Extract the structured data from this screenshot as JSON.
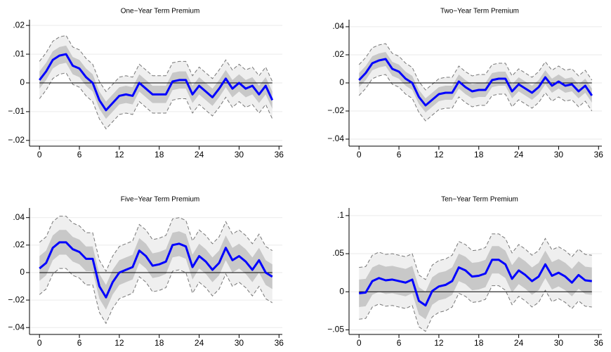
{
  "chart_data": [
    {
      "type": "line",
      "title": "One−Year Term Premium",
      "x": [
        0,
        1,
        2,
        3,
        4,
        5,
        6,
        7,
        8,
        9,
        10,
        11,
        12,
        13,
        14,
        15,
        16,
        17,
        18,
        19,
        20,
        21,
        22,
        23,
        24,
        25,
        26,
        27,
        28,
        29,
        30,
        31,
        32,
        33,
        34,
        35
      ],
      "values": [
        0.001,
        0.004,
        0.008,
        0.0095,
        0.01,
        0.006,
        0.005,
        0.002,
        0,
        -0.006,
        -0.0095,
        -0.007,
        -0.0045,
        -0.004,
        -0.0045,
        0,
        -0.002,
        -0.004,
        -0.004,
        -0.004,
        0.0005,
        0.001,
        0.001,
        -0.004,
        -0.001,
        -0.003,
        -0.005,
        -0.002,
        0.0015,
        -0.002,
        0,
        -0.002,
        -0.001,
        -0.004,
        -0.001,
        -0.006
      ],
      "color": "#0000ff",
      "bands": [
        {
          "color": "#efefef",
          "edge_color": "#777777",
          "lower": [
            -0.0055,
            -0.0025,
            0.0015,
            0.003,
            0.0035,
            -0.0005,
            -0.0015,
            -0.0045,
            -0.0065,
            -0.0125,
            -0.016,
            -0.0135,
            -0.011,
            -0.0105,
            -0.011,
            -0.0065,
            -0.0085,
            -0.0105,
            -0.0105,
            -0.0105,
            -0.006,
            -0.0055,
            -0.0055,
            -0.0105,
            -0.0075,
            -0.0095,
            -0.0115,
            -0.0085,
            -0.005,
            -0.0085,
            -0.0065,
            -0.0085,
            -0.0075,
            -0.0105,
            -0.0075,
            -0.0125
          ],
          "upper": [
            0.0075,
            0.0105,
            0.0145,
            0.016,
            0.0165,
            0.0125,
            0.0115,
            0.0085,
            0.0065,
            0.0005,
            -0.003,
            -0.0005,
            0.002,
            0.0025,
            0.002,
            0.0065,
            0.0045,
            0.0025,
            0.0025,
            0.0025,
            0.007,
            0.0075,
            0.0075,
            0.0025,
            0.0055,
            0.0035,
            0.0015,
            0.0045,
            0.008,
            0.0045,
            0.0065,
            0.0045,
            0.0055,
            0.0025,
            0.0055,
            0.0005
          ]
        },
        {
          "color": "#c8c8c8",
          "lower": [
            -0.002,
            0.001,
            0.005,
            0.0065,
            0.007,
            0.003,
            0.002,
            -0.001,
            -0.003,
            -0.009,
            -0.0125,
            -0.01,
            -0.0075,
            -0.007,
            -0.0075,
            -0.003,
            -0.005,
            -0.007,
            -0.007,
            -0.007,
            -0.0025,
            -0.002,
            -0.002,
            -0.007,
            -0.004,
            -0.006,
            -0.008,
            -0.005,
            -0.0015,
            -0.005,
            -0.003,
            -0.005,
            -0.004,
            -0.007,
            -0.004,
            -0.009
          ],
          "upper": [
            0.004,
            0.007,
            0.011,
            0.0125,
            0.013,
            0.009,
            0.008,
            0.005,
            0.003,
            -0.003,
            -0.0065,
            -0.004,
            -0.0015,
            -0.001,
            -0.0015,
            0.003,
            0.001,
            -0.001,
            -0.001,
            -0.001,
            0.0035,
            0.004,
            0.004,
            -0.001,
            0.002,
            0,
            -0.002,
            0.001,
            0.0045,
            0.001,
            0.003,
            0.001,
            0.002,
            -0.001,
            0.002,
            -0.003
          ]
        }
      ],
      "xlim": [
        -1.5,
        36.5
      ],
      "xticks": [
        0,
        6,
        12,
        18,
        24,
        30,
        36
      ],
      "ylim": [
        -0.022,
        0.022
      ],
      "yticks": [
        {
          "value": -0.02,
          "label": "−.02"
        },
        {
          "value": -0.01,
          "label": "−.01"
        },
        0,
        {
          "value": 0.01,
          "label": ".01"
        },
        {
          "value": 0.02,
          "label": ".02"
        }
      ],
      "grid": true
    },
    {
      "type": "line",
      "title": "Two−Year Term Premium",
      "x": [
        0,
        1,
        2,
        3,
        4,
        5,
        6,
        7,
        8,
        9,
        10,
        11,
        12,
        13,
        14,
        15,
        16,
        17,
        18,
        19,
        20,
        21,
        22,
        23,
        24,
        25,
        26,
        27,
        28,
        29,
        30,
        31,
        32,
        33,
        34,
        35
      ],
      "values": [
        0.002,
        0.007,
        0.014,
        0.016,
        0.017,
        0.01,
        0.008,
        0.003,
        0,
        -0.01,
        -0.016,
        -0.012,
        -0.008,
        -0.007,
        -0.007,
        0.001,
        -0.003,
        -0.006,
        -0.005,
        -0.005,
        0.002,
        0.003,
        0.003,
        -0.006,
        -0.001,
        -0.004,
        -0.007,
        -0.003,
        0.004,
        -0.002,
        0.001,
        -0.002,
        -0.001,
        -0.006,
        -0.002,
        -0.009
      ],
      "color": "#0000ff",
      "bands": [
        {
          "color": "#efefef",
          "edge_color": "#777777",
          "lower": [
            -0.009,
            -0.004,
            0.003,
            0.005,
            0.006,
            -0.001,
            -0.003,
            -0.008,
            -0.011,
            -0.021,
            -0.027,
            -0.023,
            -0.019,
            -0.018,
            -0.018,
            -0.01,
            -0.014,
            -0.017,
            -0.016,
            -0.016,
            -0.009,
            -0.008,
            -0.008,
            -0.017,
            -0.012,
            -0.015,
            -0.018,
            -0.014,
            -0.007,
            -0.013,
            -0.01,
            -0.013,
            -0.012,
            -0.017,
            -0.013,
            -0.02
          ],
          "upper": [
            0.013,
            0.018,
            0.025,
            0.027,
            0.028,
            0.021,
            0.019,
            0.014,
            0.011,
            0.001,
            -0.005,
            -0.001,
            0.003,
            0.004,
            0.004,
            0.012,
            0.008,
            0.005,
            0.006,
            0.006,
            0.013,
            0.014,
            0.014,
            0.005,
            0.01,
            0.007,
            0.004,
            0.008,
            0.015,
            0.009,
            0.012,
            0.009,
            0.01,
            0.005,
            0.009,
            0.002
          ]
        },
        {
          "color": "#c8c8c8",
          "lower": [
            -0.003,
            0.002,
            0.009,
            0.011,
            0.012,
            0.005,
            0.003,
            -0.002,
            -0.005,
            -0.015,
            -0.021,
            -0.017,
            -0.013,
            -0.012,
            -0.012,
            -0.004,
            -0.008,
            -0.011,
            -0.01,
            -0.01,
            -0.003,
            -0.002,
            -0.002,
            -0.011,
            -0.006,
            -0.009,
            -0.012,
            -0.008,
            -0.001,
            -0.007,
            -0.004,
            -0.007,
            -0.006,
            -0.011,
            -0.007,
            -0.014
          ],
          "upper": [
            0.007,
            0.012,
            0.019,
            0.021,
            0.022,
            0.015,
            0.013,
            0.008,
            0.005,
            -0.005,
            -0.011,
            -0.007,
            -0.003,
            -0.002,
            -0.002,
            0.006,
            0.002,
            -0.001,
            0,
            0,
            0.007,
            0.008,
            0.008,
            -0.001,
            0.004,
            0.001,
            -0.002,
            0.002,
            0.009,
            0.003,
            0.006,
            0.003,
            0.004,
            -0.001,
            0.003,
            -0.004
          ]
        }
      ],
      "xlim": [
        -1.5,
        36.5
      ],
      "xticks": [
        0,
        6,
        12,
        18,
        24,
        30,
        36
      ],
      "ylim": [
        -0.045,
        0.045
      ],
      "yticks": [
        {
          "value": -0.04,
          "label": "−.04"
        },
        {
          "value": -0.02,
          "label": "−.02"
        },
        0,
        {
          "value": 0.02,
          "label": ".02"
        },
        {
          "value": 0.04,
          "label": ".04"
        }
      ],
      "grid": true
    },
    {
      "type": "line",
      "title": "Five−Year Term Premium",
      "x": [
        0,
        1,
        2,
        3,
        4,
        5,
        6,
        7,
        8,
        9,
        10,
        11,
        12,
        13,
        14,
        15,
        16,
        17,
        18,
        19,
        20,
        21,
        22,
        23,
        24,
        25,
        26,
        27,
        28,
        29,
        30,
        31,
        32,
        33,
        34,
        35
      ],
      "values": [
        0.003,
        0.007,
        0.018,
        0.022,
        0.022,
        0.017,
        0.015,
        0.01,
        0.01,
        -0.01,
        -0.018,
        -0.007,
        0,
        0.002,
        0.004,
        0.016,
        0.012,
        0.005,
        0.006,
        0.008,
        0.02,
        0.021,
        0.019,
        0.004,
        0.012,
        0.008,
        0.002,
        0.007,
        0.018,
        0.009,
        0.012,
        0.008,
        0.002,
        0.009,
        0,
        -0.003
      ],
      "color": "#0000ff",
      "bands": [
        {
          "color": "#efefef",
          "edge_color": "#777777",
          "lower": [
            -0.016,
            -0.012,
            -0.001,
            0.003,
            0.003,
            -0.002,
            -0.004,
            -0.009,
            -0.009,
            -0.029,
            -0.037,
            -0.026,
            -0.019,
            -0.017,
            -0.015,
            -0.003,
            -0.007,
            -0.014,
            -0.013,
            -0.011,
            0.001,
            0.002,
            0,
            -0.015,
            -0.007,
            -0.011,
            -0.017,
            -0.012,
            -0.001,
            -0.01,
            -0.007,
            -0.011,
            -0.017,
            -0.01,
            -0.019,
            -0.022
          ],
          "upper": [
            0.022,
            0.026,
            0.037,
            0.041,
            0.041,
            0.036,
            0.034,
            0.029,
            0.029,
            0.009,
            0.001,
            0.012,
            0.019,
            0.021,
            0.023,
            0.035,
            0.031,
            0.024,
            0.025,
            0.027,
            0.039,
            0.04,
            0.038,
            0.023,
            0.031,
            0.027,
            0.021,
            0.026,
            0.037,
            0.028,
            0.031,
            0.027,
            0.021,
            0.028,
            0.019,
            0.016
          ]
        },
        {
          "color": "#c8c8c8",
          "lower": [
            -0.006,
            -0.002,
            0.009,
            0.013,
            0.013,
            0.008,
            0.006,
            0.001,
            0.001,
            -0.019,
            -0.027,
            -0.016,
            -0.009,
            -0.007,
            -0.005,
            0.007,
            0.003,
            -0.004,
            -0.003,
            -0.001,
            0.011,
            0.012,
            0.01,
            -0.005,
            0.003,
            -0.001,
            -0.007,
            -0.002,
            0.009,
            0,
            0.003,
            -0.001,
            -0.007,
            0,
            -0.009,
            -0.012
          ],
          "upper": [
            0.012,
            0.016,
            0.027,
            0.031,
            0.031,
            0.026,
            0.024,
            0.019,
            0.019,
            -0.001,
            -0.009,
            0.002,
            0.009,
            0.011,
            0.013,
            0.025,
            0.021,
            0.014,
            0.015,
            0.017,
            0.029,
            0.03,
            0.028,
            0.013,
            0.021,
            0.017,
            0.011,
            0.016,
            0.027,
            0.018,
            0.021,
            0.017,
            0.011,
            0.018,
            0.009,
            0.006
          ]
        }
      ],
      "xlim": [
        -1.5,
        36.5
      ],
      "xticks": [
        0,
        6,
        12,
        18,
        24,
        30,
        36
      ],
      "ylim": [
        -0.045,
        0.047
      ],
      "yticks": [
        {
          "value": -0.04,
          "label": "−.04"
        },
        {
          "value": -0.02,
          "label": "−.02"
        },
        0,
        {
          "value": 0.02,
          "label": ".02"
        },
        {
          "value": 0.04,
          "label": ".04"
        }
      ],
      "grid": true
    },
    {
      "type": "line",
      "title": "Ten−Year Term Premium",
      "x": [
        0,
        1,
        2,
        3,
        4,
        5,
        6,
        7,
        8,
        9,
        10,
        11,
        12,
        13,
        14,
        15,
        16,
        17,
        18,
        19,
        20,
        21,
        22,
        23,
        24,
        25,
        26,
        27,
        28,
        29,
        30,
        31,
        32,
        33,
        34,
        35
      ],
      "values": [
        -0.002,
        -0.001,
        0.014,
        0.018,
        0.015,
        0.016,
        0.014,
        0.012,
        0.016,
        -0.012,
        -0.018,
        0.001,
        0.007,
        0.009,
        0.014,
        0.032,
        0.028,
        0.02,
        0.021,
        0.024,
        0.042,
        0.042,
        0.036,
        0.017,
        0.028,
        0.022,
        0.014,
        0.02,
        0.036,
        0.021,
        0.025,
        0.02,
        0.012,
        0.022,
        0.015,
        0.014
      ],
      "color": "#0000ff",
      "bands": [
        {
          "color": "#efefef",
          "edge_color": "#777777",
          "lower": [
            -0.036,
            -0.035,
            -0.02,
            -0.016,
            -0.019,
            -0.018,
            -0.02,
            -0.022,
            -0.018,
            -0.046,
            -0.052,
            -0.033,
            -0.027,
            -0.025,
            -0.02,
            -0.002,
            -0.006,
            -0.014,
            -0.013,
            -0.01,
            0.008,
            0.008,
            0.002,
            -0.017,
            -0.006,
            -0.012,
            -0.02,
            -0.014,
            0.002,
            -0.013,
            -0.009,
            -0.014,
            -0.022,
            -0.012,
            -0.019,
            -0.02
          ],
          "upper": [
            0.032,
            0.033,
            0.048,
            0.052,
            0.049,
            0.05,
            0.048,
            0.046,
            0.05,
            0.022,
            0.016,
            0.035,
            0.041,
            0.043,
            0.048,
            0.066,
            0.062,
            0.054,
            0.055,
            0.058,
            0.076,
            0.076,
            0.07,
            0.051,
            0.062,
            0.056,
            0.048,
            0.054,
            0.07,
            0.055,
            0.059,
            0.054,
            0.046,
            0.056,
            0.049,
            0.048
          ]
        },
        {
          "color": "#c8c8c8",
          "lower": [
            -0.02,
            -0.019,
            -0.004,
            0,
            -0.003,
            -0.002,
            -0.004,
            -0.006,
            -0.002,
            -0.03,
            -0.036,
            -0.017,
            -0.011,
            -0.009,
            -0.004,
            0.014,
            0.01,
            0.002,
            0.003,
            0.006,
            0.024,
            0.024,
            0.018,
            -0.001,
            0.01,
            0.004,
            -0.004,
            0.002,
            0.018,
            0.003,
            0.007,
            0.002,
            -0.006,
            0.004,
            -0.003,
            -0.004
          ],
          "upper": [
            0.016,
            0.017,
            0.032,
            0.036,
            0.033,
            0.034,
            0.032,
            0.03,
            0.034,
            0.006,
            0,
            0.019,
            0.025,
            0.027,
            0.032,
            0.05,
            0.046,
            0.038,
            0.039,
            0.042,
            0.06,
            0.06,
            0.054,
            0.035,
            0.046,
            0.04,
            0.032,
            0.038,
            0.054,
            0.039,
            0.043,
            0.038,
            0.03,
            0.04,
            0.033,
            0.032
          ]
        }
      ],
      "xlim": [
        -1.5,
        36.5
      ],
      "xticks": [
        0,
        6,
        12,
        18,
        24,
        30,
        36
      ],
      "ylim": [
        -0.056,
        0.11
      ],
      "yticks": [
        {
          "value": -0.05,
          "label": "−.05"
        },
        0,
        {
          "value": 0.05,
          "label": ".05"
        },
        {
          "value": 0.1,
          "label": ".1"
        }
      ],
      "grid": true
    }
  ]
}
